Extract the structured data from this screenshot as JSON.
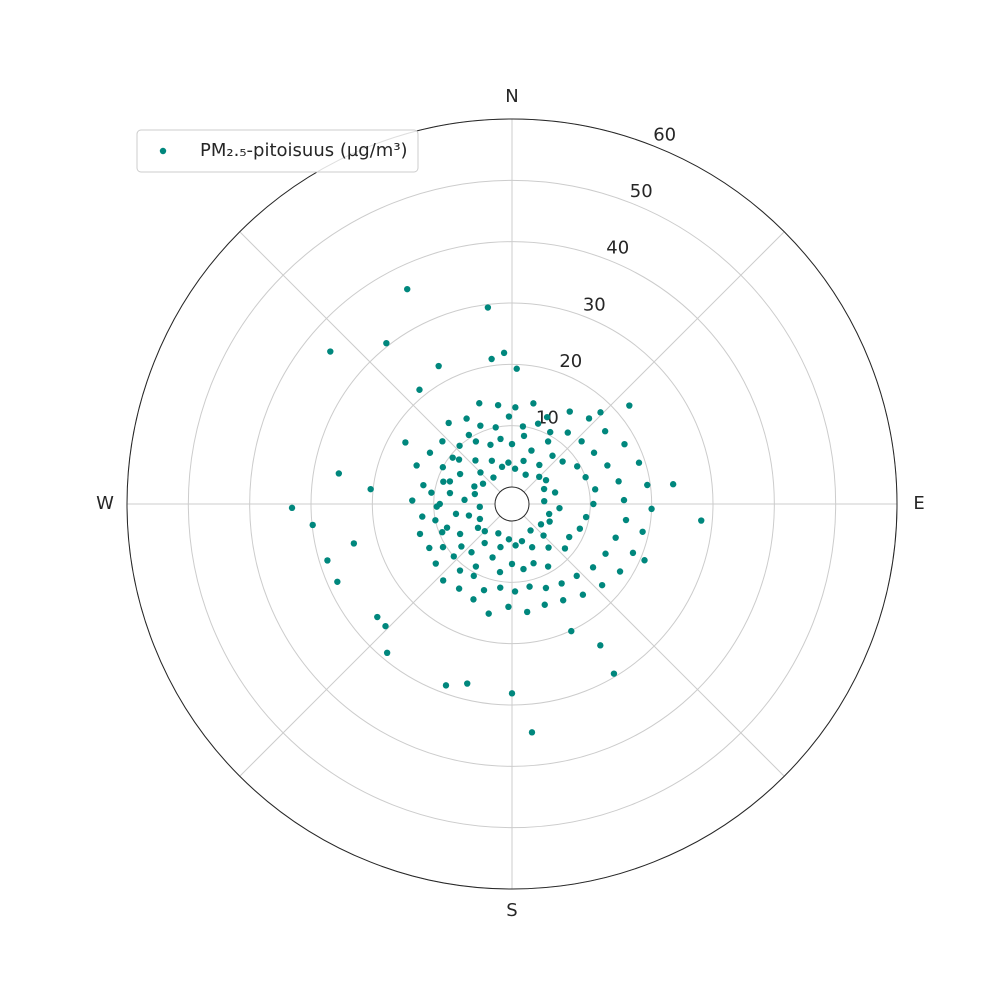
{
  "chart_data": {
    "type": "scatter",
    "polar": true,
    "theta_zero": "N",
    "theta_direction": "clockwise",
    "grid": true,
    "legend": "upper left",
    "ylim": [
      0,
      60
    ],
    "yticks": [
      10,
      20,
      30,
      40,
      50,
      60
    ],
    "xticks": [
      {
        "value": 0,
        "label": "N"
      },
      {
        "value": 90,
        "label": "E"
      },
      {
        "value": 180,
        "label": "S"
      },
      {
        "value": 270,
        "label": "W"
      }
    ],
    "minor_xticks": [
      45,
      135,
      225,
      315
    ],
    "series": [
      {
        "name": "PM₂.₅-pitoisuus (µg/m³)",
        "color": "#00877d",
        "x": [
          5,
          15,
          25,
          35,
          45,
          55,
          65,
          75,
          85,
          95,
          105,
          115,
          125,
          135,
          145,
          155,
          165,
          175,
          185,
          195,
          205,
          215,
          225,
          235,
          245,
          255,
          265,
          275,
          285,
          295,
          305,
          315,
          325,
          335,
          345,
          355,
          0,
          10,
          20,
          30,
          40,
          50,
          60,
          70,
          80,
          90,
          100,
          110,
          120,
          130,
          140,
          150,
          160,
          170,
          180,
          190,
          200,
          210,
          220,
          230,
          240,
          250,
          260,
          270,
          280,
          290,
          300,
          310,
          320,
          330,
          340,
          350,
          8,
          18,
          28,
          38,
          48,
          58,
          68,
          78,
          88,
          98,
          108,
          118,
          128,
          138,
          148,
          158,
          168,
          178,
          188,
          198,
          208,
          218,
          228,
          238,
          248,
          258,
          268,
          278,
          288,
          298,
          308,
          318,
          328,
          338,
          348,
          358,
          2,
          12,
          22,
          32,
          42,
          52,
          62,
          72,
          82,
          92,
          102,
          112,
          122,
          132,
          142,
          152,
          162,
          172,
          182,
          192,
          202,
          212,
          222,
          232,
          242,
          252,
          262,
          272,
          282,
          292,
          302,
          312,
          322,
          332,
          342,
          352,
          334,
          353,
          310,
          322,
          269,
          264,
          256,
          253,
          246,
          280,
          276,
          230,
          220,
          200,
          194,
          180,
          175,
          149,
          95,
          83,
          50,
          2,
          357,
          352,
          332,
          321,
          300,
          44,
          113,
          148,
          155,
          226
        ],
        "values": [
          3,
          4.5,
          2.5,
          5,
          3.5,
          4,
          3,
          4.5,
          2.5,
          5,
          3.5,
          4,
          3,
          4.5,
          2.5,
          5,
          3.5,
          4,
          3,
          4.5,
          2.5,
          5,
          3.5,
          4,
          3,
          4.5,
          2.5,
          5,
          3.5,
          4,
          3,
          4.5,
          2.5,
          5,
          3.5,
          4,
          7,
          8.5,
          6.5,
          9,
          7.5,
          8,
          9.5,
          10,
          11,
          10.5,
          9.5,
          9,
          8,
          8.5,
          6.5,
          9,
          7.5,
          8,
          7,
          8.5,
          6.5,
          9,
          7.5,
          8,
          7,
          8.5,
          6.5,
          9,
          7.5,
          8,
          7,
          8.5,
          6.5,
          9,
          7.5,
          8,
          10,
          11,
          10.5,
          12,
          12.5,
          13,
          14,
          15,
          15.5,
          16,
          15,
          14.5,
          14,
          13,
          12.5,
          12,
          11,
          11.5,
          11,
          12,
          10.5,
          11,
          10,
          10.5,
          9.5,
          10,
          9.5,
          10.5,
          9,
          10,
          9.5,
          10,
          10.5,
          11,
          10,
          11.5,
          13,
          14,
          12.5,
          15,
          16,
          16.5,
          18,
          19,
          19.5,
          20,
          19,
          18.5,
          18,
          17,
          16,
          15,
          14.5,
          15,
          14,
          15.5,
          14,
          13.5,
          14,
          13,
          12.5,
          13,
          12,
          13.5,
          12,
          14,
          13,
          12.5,
          14,
          13,
          14.5,
          13.5,
          36.2,
          29.5,
          35.9,
          30.5,
          33.1,
          29.9,
          23.8,
          28.7,
          28.4,
          25.9,
          20.4,
          25.9,
          28.9,
          28.7,
          27.4,
          28.1,
          34.6,
          29.5,
          28.2,
          23.7,
          22.2,
          19.3,
          21.9,
          21.1,
          22.7,
          21.2,
          17.3,
          18,
          20.7,
          24.4,
          20.1,
          25.9
        ]
      }
    ]
  }
}
